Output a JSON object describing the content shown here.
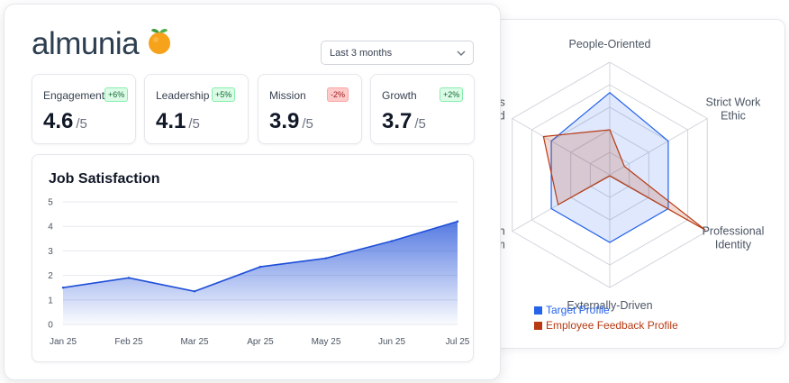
{
  "brand": {
    "name": "almunia",
    "icon": "orange-fruit-icon",
    "color": "#2c3e50"
  },
  "period_select": {
    "value": "Last 3 months"
  },
  "kpis": [
    {
      "name": "Engagement",
      "badge": "+6%",
      "trend": "up",
      "value": "4.6",
      "denom": "/5"
    },
    {
      "name": "Leadership",
      "badge": "+5%",
      "trend": "up",
      "value": "4.1",
      "denom": "/5"
    },
    {
      "name": "Mission",
      "badge": "-2%",
      "trend": "down",
      "value": "3.9",
      "denom": "/5"
    },
    {
      "name": "Growth",
      "badge": "+2%",
      "trend": "up",
      "value": "3.7",
      "denom": "/5"
    }
  ],
  "chart_data": [
    {
      "type": "area",
      "title": "Job Satisfaction",
      "x": [
        "Jan 25",
        "Feb 25",
        "Mar 25",
        "Apr 25",
        "May 25",
        "Jun 25",
        "Jul 25"
      ],
      "series": [
        {
          "values": [
            1.5,
            1.9,
            1.35,
            2.35,
            2.7,
            3.4,
            4.2
          ],
          "color": "#1d4ed8"
        }
      ],
      "ylim": [
        0,
        5
      ],
      "yticks": [
        "0",
        "1",
        "2",
        "3",
        "4",
        "5"
      ],
      "grid": true
    },
    {
      "type": "radar",
      "axes": [
        "People-Oriented",
        "Strict Work Ethic",
        "Professional Identity",
        "Externally-Driven",
        "Open System",
        "Results Oriented"
      ],
      "visible_axis_labels": [
        "People-Oriented",
        "Strict Work\nEthic",
        "Professional\nIdentity",
        "Externally-Driven",
        "een\ntem",
        "lts\nnted"
      ],
      "range": [
        0,
        1
      ],
      "series": [
        {
          "name": "Target Profile",
          "color": "#2563eb",
          "values": [
            0.73,
            0.6,
            0.6,
            0.6,
            0.6,
            0.6
          ]
        },
        {
          "name": "Employee Feedback Profile",
          "color": "#b83a12",
          "values": [
            0.4,
            0.15,
            0.98,
            0.01,
            0.53,
            0.68
          ]
        }
      ],
      "legend": "bottom-left"
    }
  ]
}
